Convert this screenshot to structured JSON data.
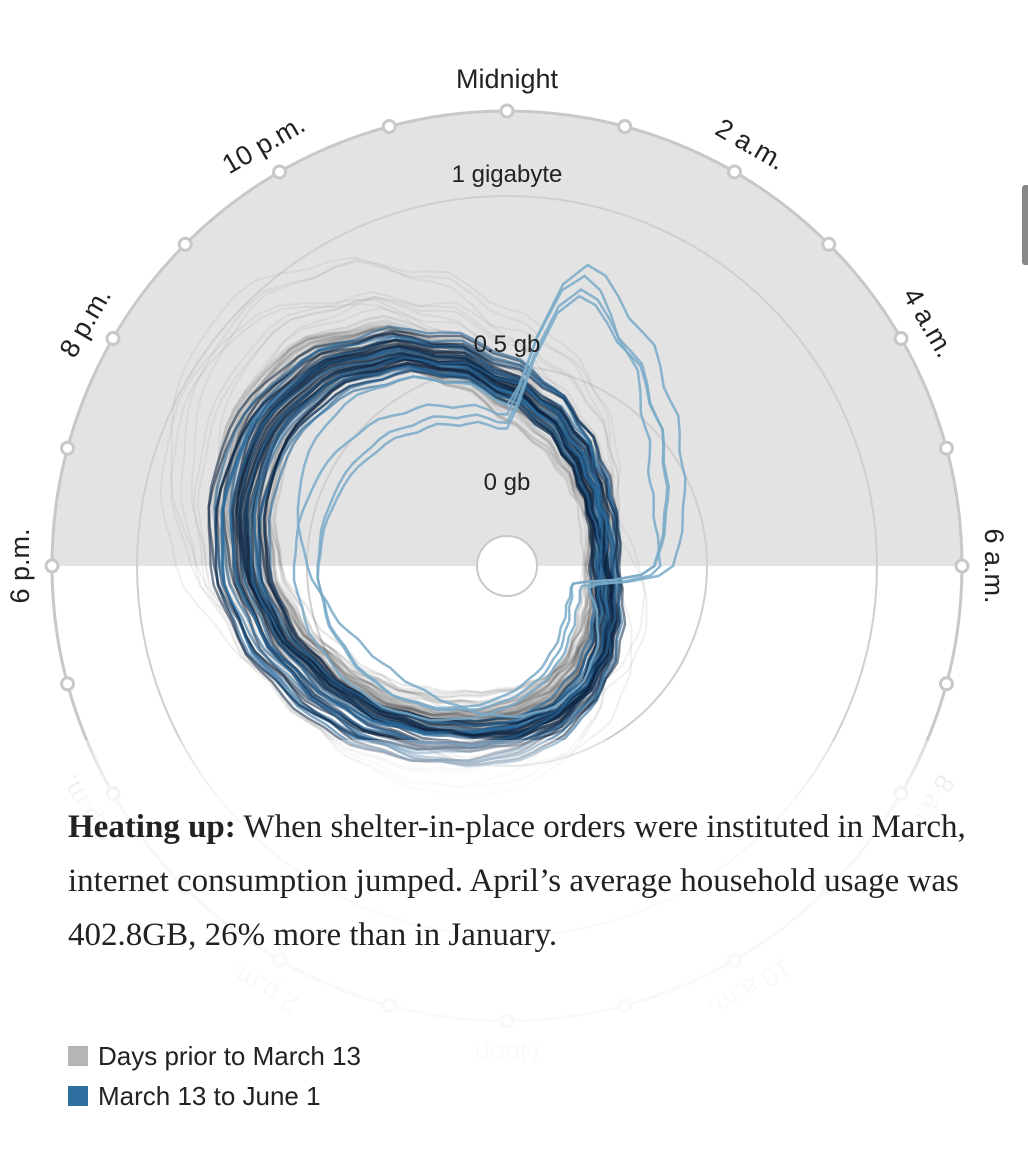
{
  "chart_data": {
    "type": "radial-line",
    "hour_labels": {
      "midnight": "Midnight",
      "2am": "2 a.m.",
      "4am": "4 a.m.",
      "6am": "6 a.m.",
      "8am": "8 a.m.",
      "10am": "10 a.m.",
      "noon": "Noon",
      "2pm": "2 p.m.",
      "4pm": "4 p.m.",
      "6pm": "6 p.m.",
      "8pm": "8 p.m.",
      "10pm": "10 p.m."
    },
    "ring_labels": [
      "0 gb",
      "0.5 gb",
      "1 gigabyte"
    ],
    "radial_range_gb": [
      0,
      1
    ],
    "night_shading": "6 p.m. to 6 a.m.",
    "series": [
      {
        "name": "Days prior to March 13",
        "color": "#b0b0b0",
        "typical_gb_by_hour": [
          0.42,
          0.36,
          0.3,
          0.25,
          0.22,
          0.2,
          0.19,
          0.2,
          0.22,
          0.25,
          0.29,
          0.32,
          0.35,
          0.38,
          0.42,
          0.47,
          0.53,
          0.6,
          0.67,
          0.72,
          0.75,
          0.74,
          0.66,
          0.54
        ]
      },
      {
        "name": "March 13 to June 1",
        "color": "#2f6f9f",
        "typical_gb_by_hour": [
          0.47,
          0.4,
          0.33,
          0.27,
          0.23,
          0.21,
          0.2,
          0.22,
          0.26,
          0.31,
          0.36,
          0.4,
          0.43,
          0.46,
          0.5,
          0.55,
          0.6,
          0.66,
          0.71,
          0.74,
          0.75,
          0.72,
          0.65,
          0.56
        ]
      }
    ]
  },
  "caption": {
    "lead": "Heating up:",
    "text": " When shelter-in-place orders were instituted in March, internet consumption jumped. April’s average household usage was 402.8GB, 26% more than in January."
  },
  "legend": [
    {
      "label": "Days prior to March 13",
      "color": "#b5b5b5"
    },
    {
      "label": "March 13 to June 1",
      "color": "#2f6f9f"
    }
  ]
}
